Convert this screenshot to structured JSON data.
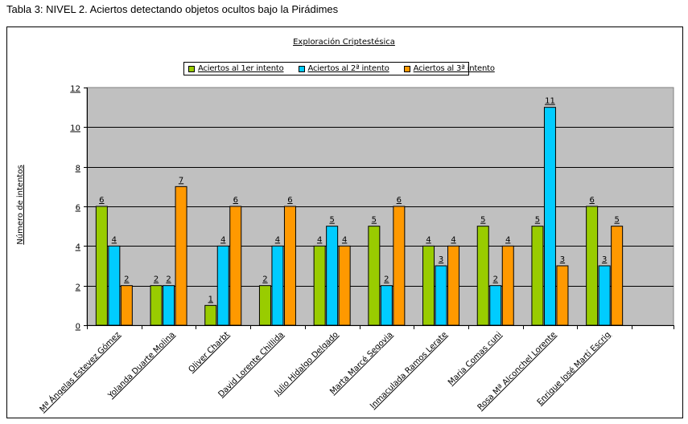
{
  "caption": "Tabla 3: NIVEL 2. Aciertos detectando objetos ocultos bajo la Pirádimes",
  "colors": {
    "plot_bg": "#c0c0c0",
    "series1": "#99cc00",
    "series2": "#00ccff",
    "series3": "#ff9900",
    "grid": "#000000"
  },
  "chart_data": {
    "type": "bar",
    "title": "Exploración Criptestésica",
    "xlabel": "",
    "ylabel": "Número de intentos",
    "ylim": [
      0,
      12
    ],
    "yticks": [
      "0",
      "2",
      "4",
      "6",
      "8",
      "10",
      "12"
    ],
    "grid": true,
    "legend_position": "top",
    "categories": [
      "Mª Ángelas Estevez Gómez",
      "Yolanda Duarte Molina",
      "Oliver Charbt",
      "David Lorente Chillida",
      "Julio Hidalgo Delgado",
      "Marta Marcé Segovia",
      "Inmaculada Ramos Lerate",
      "Maria Comas cuni",
      "Rosa Mª Alconchel Lorente",
      "Enrique José Martí Escrig"
    ],
    "series": [
      {
        "name": "Aciertos al 1er intento",
        "values": [
          6,
          2,
          1,
          2,
          4,
          5,
          4,
          5,
          5,
          6
        ]
      },
      {
        "name": "Aciertos al 2ª intento",
        "values": [
          4,
          2,
          4,
          4,
          5,
          2,
          3,
          2,
          11,
          3
        ]
      },
      {
        "name": "Aciertos al 3ª intento",
        "values": [
          2,
          7,
          6,
          6,
          4,
          6,
          4,
          4,
          3,
          5
        ]
      }
    ]
  }
}
